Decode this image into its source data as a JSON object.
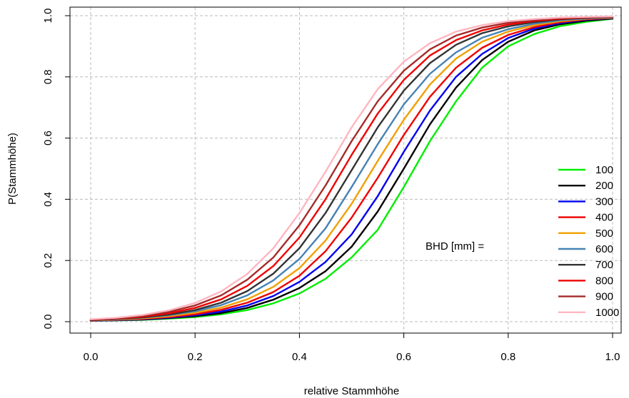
{
  "chart_data": {
    "type": "line",
    "title": "",
    "xlabel": "relative Stammhöhe",
    "ylabel": "P(Stammhöhe)",
    "xlim": [
      0,
      1
    ],
    "ylim": [
      0,
      1
    ],
    "xticks": [
      0,
      0.2,
      0.4,
      0.6,
      0.8,
      1
    ],
    "yticks": [
      0,
      0.2,
      0.4,
      0.6,
      0.8,
      1
    ],
    "xtick_labels": [
      "0.0",
      "0.2",
      "0.4",
      "0.6",
      "0.8",
      "1.0"
    ],
    "ytick_labels": [
      "0.0",
      "0.2",
      "0.4",
      "0.6",
      "0.8",
      "1.0"
    ],
    "grid": true,
    "legend_position": "right",
    "annotation": "BHD [mm] =",
    "x": [
      0,
      0.05,
      0.1,
      0.15,
      0.2,
      0.25,
      0.3,
      0.35,
      0.4,
      0.45,
      0.5,
      0.55,
      0.6,
      0.65,
      0.7,
      0.75,
      0.8,
      0.85,
      0.9,
      0.95,
      1
    ],
    "series": [
      {
        "name": "100",
        "color": "#00ee00",
        "values": [
          0.003,
          0.004,
          0.006,
          0.01,
          0.015,
          0.024,
          0.038,
          0.06,
          0.092,
          0.14,
          0.21,
          0.3,
          0.44,
          0.59,
          0.72,
          0.83,
          0.9,
          0.94,
          0.966,
          0.98,
          0.99
        ]
      },
      {
        "name": "200",
        "color": "#000000",
        "values": [
          0.003,
          0.005,
          0.007,
          0.012,
          0.018,
          0.028,
          0.045,
          0.072,
          0.11,
          0.165,
          0.245,
          0.36,
          0.5,
          0.645,
          0.765,
          0.855,
          0.915,
          0.952,
          0.972,
          0.984,
          0.991
        ]
      },
      {
        "name": "300",
        "color": "#0000ee",
        "values": [
          0.003,
          0.005,
          0.008,
          0.013,
          0.021,
          0.033,
          0.053,
          0.084,
          0.13,
          0.195,
          0.285,
          0.41,
          0.555,
          0.69,
          0.8,
          0.875,
          0.927,
          0.958,
          0.976,
          0.987,
          0.992
        ]
      },
      {
        "name": "400",
        "color": "#ee0000",
        "values": [
          0.004,
          0.006,
          0.009,
          0.015,
          0.024,
          0.039,
          0.062,
          0.097,
          0.15,
          0.23,
          0.34,
          0.47,
          0.61,
          0.735,
          0.83,
          0.895,
          0.937,
          0.963,
          0.979,
          0.988,
          0.993
        ]
      },
      {
        "name": "500",
        "color": "#f0a000",
        "values": [
          0.004,
          0.007,
          0.011,
          0.018,
          0.029,
          0.046,
          0.073,
          0.114,
          0.175,
          0.265,
          0.385,
          0.525,
          0.66,
          0.775,
          0.86,
          0.915,
          0.948,
          0.969,
          0.982,
          0.99,
          0.994
        ]
      },
      {
        "name": "600",
        "color": "#4682b4",
        "values": [
          0.005,
          0.008,
          0.013,
          0.021,
          0.034,
          0.054,
          0.086,
          0.135,
          0.205,
          0.305,
          0.44,
          0.58,
          0.71,
          0.81,
          0.88,
          0.928,
          0.956,
          0.974,
          0.985,
          0.991,
          0.995
        ]
      },
      {
        "name": "700",
        "color": "#333333",
        "values": [
          0.005,
          0.009,
          0.014,
          0.023,
          0.038,
          0.062,
          0.1,
          0.157,
          0.24,
          0.355,
          0.495,
          0.635,
          0.755,
          0.845,
          0.905,
          0.943,
          0.965,
          0.979,
          0.988,
          0.993,
          0.996
        ]
      },
      {
        "name": "800",
        "color": "#ee0000",
        "values": [
          0.006,
          0.01,
          0.016,
          0.027,
          0.045,
          0.073,
          0.117,
          0.182,
          0.275,
          0.4,
          0.545,
          0.68,
          0.79,
          0.87,
          0.92,
          0.952,
          0.971,
          0.983,
          0.99,
          0.994,
          0.997
        ]
      },
      {
        "name": "900",
        "color": "#a52a2a",
        "values": [
          0.007,
          0.011,
          0.019,
          0.032,
          0.053,
          0.086,
          0.137,
          0.21,
          0.315,
          0.445,
          0.59,
          0.72,
          0.82,
          0.89,
          0.935,
          0.961,
          0.977,
          0.986,
          0.992,
          0.995,
          0.997
        ]
      },
      {
        "name": "1000",
        "color": "#ffb6c1",
        "values": [
          0.008,
          0.013,
          0.022,
          0.037,
          0.061,
          0.099,
          0.156,
          0.24,
          0.355,
          0.49,
          0.635,
          0.76,
          0.85,
          0.91,
          0.948,
          0.969,
          0.982,
          0.989,
          0.994,
          0.996,
          0.998
        ]
      }
    ]
  }
}
